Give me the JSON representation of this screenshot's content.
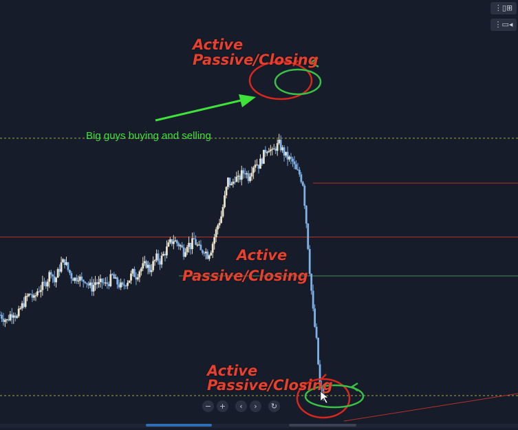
{
  "annotations": {
    "top_active": "Active",
    "top_passive": "Passive/Closing",
    "mid_active": "Active",
    "mid_passive": "Passive/Closing",
    "bottom_active": "Active",
    "bottom_passive": "Passive/Closing",
    "note": "Big guys buying and selling"
  },
  "toolbar": {
    "zoom_out_icon": "minus-icon",
    "zoom_in_icon": "plus-icon",
    "scroll_left_icon": "chevron-left-icon",
    "scroll_right_icon": "chevron-right-icon",
    "reset_icon": "reset-icon"
  },
  "colors": {
    "background": "#161c29",
    "candle_up": "#e9e2cc",
    "candle_down": "#7fb0e8",
    "annotation_red": "#e8402e",
    "annotation_green": "#3ee23b",
    "level_line_red": "#b8322c",
    "level_line_green": "#4a8a58",
    "dotted_level": "#a8a843"
  },
  "chart_data": {
    "type": "candlestick",
    "title": "",
    "xlabel": "",
    "ylabel": "",
    "ylim": [
      0,
      100
    ],
    "price_path": [
      [
        0,
        27
      ],
      [
        3,
        26
      ],
      [
        6,
        25
      ],
      [
        9,
        27
      ],
      [
        12,
        28
      ],
      [
        15,
        26
      ],
      [
        18,
        29
      ],
      [
        21,
        31
      ],
      [
        24,
        33
      ],
      [
        27,
        34
      ],
      [
        30,
        32
      ],
      [
        33,
        35
      ],
      [
        36,
        36
      ],
      [
        39,
        37
      ],
      [
        42,
        39
      ],
      [
        45,
        42
      ],
      [
        48,
        38
      ],
      [
        51,
        41
      ],
      [
        54,
        44
      ],
      [
        57,
        45
      ],
      [
        60,
        42
      ],
      [
        63,
        40
      ],
      [
        66,
        39
      ],
      [
        69,
        40
      ],
      [
        72,
        38
      ],
      [
        75,
        39
      ],
      [
        78,
        37
      ],
      [
        81,
        36
      ],
      [
        84,
        38
      ],
      [
        87,
        37
      ],
      [
        90,
        38
      ],
      [
        93,
        37
      ],
      [
        96,
        38
      ],
      [
        99,
        40
      ],
      [
        102,
        38
      ],
      [
        105,
        37
      ],
      [
        108,
        36
      ],
      [
        111,
        38
      ],
      [
        114,
        39
      ],
      [
        117,
        41
      ],
      [
        120,
        40
      ],
      [
        123,
        42
      ],
      [
        126,
        43
      ],
      [
        129,
        44
      ],
      [
        132,
        42
      ],
      [
        135,
        44
      ],
      [
        138,
        46
      ],
      [
        141,
        45
      ],
      [
        144,
        47
      ],
      [
        147,
        49
      ],
      [
        150,
        51
      ],
      [
        153,
        52
      ],
      [
        156,
        51
      ],
      [
        159,
        50
      ],
      [
        162,
        48
      ],
      [
        165,
        51
      ],
      [
        168,
        50
      ],
      [
        171,
        52
      ],
      [
        174,
        50
      ],
      [
        177,
        48
      ],
      [
        180,
        49
      ],
      [
        183,
        47
      ],
      [
        186,
        49
      ],
      [
        189,
        53
      ],
      [
        192,
        57
      ],
      [
        195,
        60
      ],
      [
        198,
        66
      ],
      [
        201,
        72
      ],
      [
        204,
        70
      ],
      [
        207,
        73
      ],
      [
        210,
        72
      ],
      [
        213,
        74
      ],
      [
        216,
        75
      ],
      [
        219,
        73
      ],
      [
        222,
        76
      ],
      [
        225,
        78
      ],
      [
        228,
        77
      ],
      [
        231,
        79
      ],
      [
        234,
        82
      ],
      [
        237,
        83
      ],
      [
        240,
        81
      ],
      [
        243,
        83
      ],
      [
        246,
        84
      ],
      [
        249,
        82
      ],
      [
        252,
        80
      ],
      [
        255,
        79
      ],
      [
        258,
        78
      ],
      [
        261,
        75
      ],
      [
        264,
        74
      ],
      [
        267,
        71
      ],
      [
        270,
        58
      ],
      [
        273,
        42
      ],
      [
        276,
        28
      ],
      [
        279,
        18
      ],
      [
        282,
        3
      ],
      [
        285,
        0
      ]
    ],
    "levels": [
      {
        "name": "dotted-top",
        "value": 86,
        "style": "dotted"
      },
      {
        "name": "red-upper",
        "value": 71,
        "style": "solid"
      },
      {
        "name": "red-middle",
        "value": 53,
        "style": "solid"
      },
      {
        "name": "green-middle",
        "value": 40,
        "style": "solid"
      },
      {
        "name": "dotted-bottom",
        "value": 0,
        "style": "dotted"
      }
    ],
    "grid": false,
    "legend": "none"
  }
}
